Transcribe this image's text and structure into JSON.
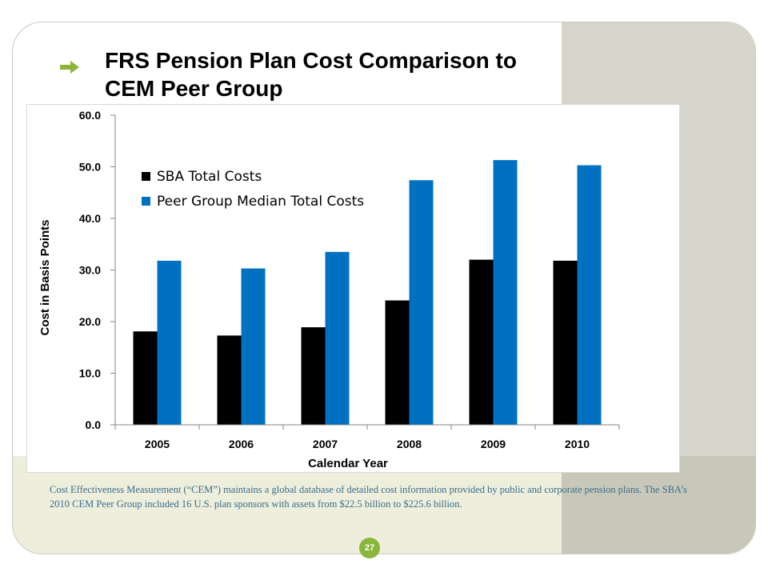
{
  "slide": {
    "title_line1": "FRS Pension Plan Cost Comparison to",
    "title_line2": "CEM Peer Group",
    "caption": "Cost Effectiveness Measurement (“CEM”) maintains a global database of detailed cost information provided by public and corporate pension plans. The SBA’s 2010 CEM Peer Group included 16 U.S. plan sponsors with assets from $22.5 billion to $225.6 billion.",
    "page_number": "27",
    "accent_color": "#8ab63a",
    "arrow_icon": "right-arrow-icon"
  },
  "chart_data": {
    "type": "bar",
    "title": "",
    "xlabel": "Calendar Year",
    "ylabel": "Cost in Basis Points",
    "categories": [
      "2005",
      "2006",
      "2007",
      "2008",
      "2009",
      "2010"
    ],
    "ylim": [
      0,
      60
    ],
    "yticks": [
      "0.0",
      "10.0",
      "20.0",
      "30.0",
      "40.0",
      "50.0",
      "60.0"
    ],
    "grid": false,
    "legend_position": "top-left",
    "series": [
      {
        "name": "SBA Total Costs",
        "color": "#000000",
        "values": [
          18.1,
          17.3,
          18.9,
          24.1,
          32.0,
          31.8
        ]
      },
      {
        "name": "Peer Group Median Total Costs",
        "color": "#0070c0",
        "values": [
          31.8,
          30.3,
          33.5,
          47.4,
          51.3,
          50.3
        ]
      }
    ]
  }
}
